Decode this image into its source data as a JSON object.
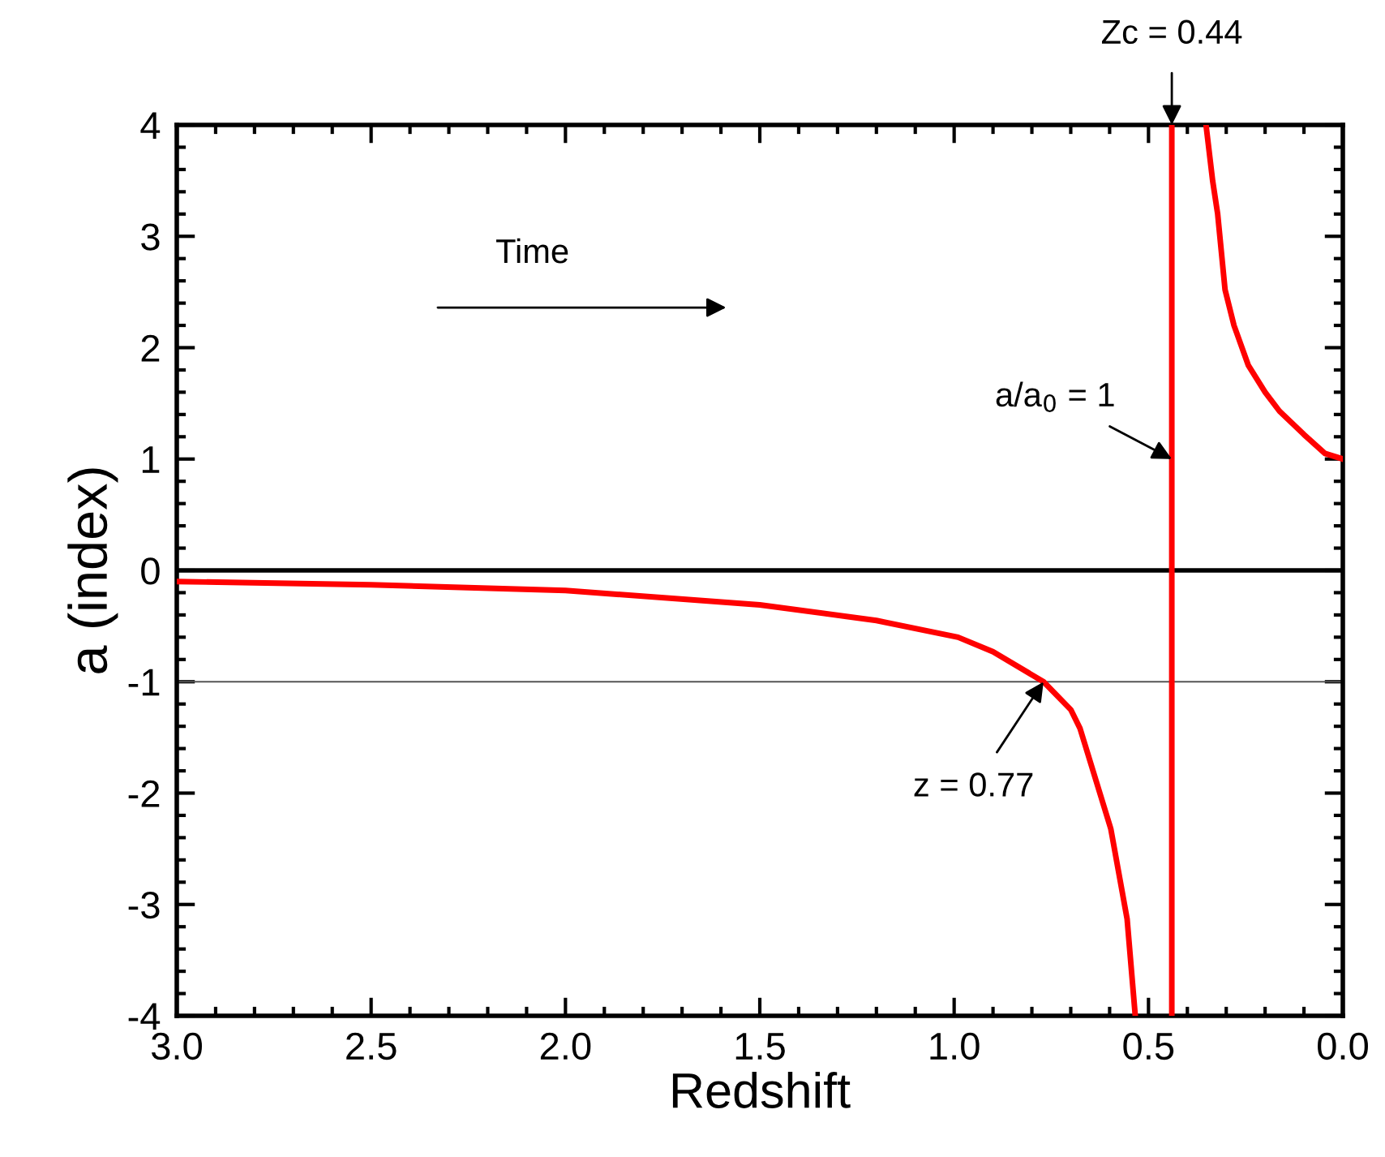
{
  "chart_data": {
    "type": "line",
    "xlabel": "Redshift",
    "ylabel": "a (index)",
    "xlim": [
      3.0,
      0.0
    ],
    "xticks": [
      {
        "value": 3.0,
        "label": "3.0"
      },
      {
        "value": 2.5,
        "label": "2.5"
      },
      {
        "value": 2.0,
        "label": "2.0"
      },
      {
        "value": 1.5,
        "label": "1.5"
      },
      {
        "value": 1.0,
        "label": "1.0"
      },
      {
        "value": 0.5,
        "label": "0.5"
      },
      {
        "value": 0.0,
        "label": "0.0"
      }
    ],
    "ylim": [
      -4,
      4
    ],
    "yticks": [
      -4,
      -3,
      -2,
      -1,
      0,
      1,
      2,
      3,
      4
    ],
    "grid": false,
    "marker": "none",
    "line_style": "solid",
    "series": [
      {
        "color": "#ff0000",
        "x": [
          3.0,
          2.5,
          2.0,
          1.5,
          1.2,
          0.99,
          0.9,
          0.77,
          0.7,
          0.676,
          0.597,
          0.555,
          0.534
        ],
        "values": [
          -0.1,
          -0.13,
          -0.18,
          -0.31,
          -0.45,
          -0.6,
          -0.73,
          -1.0,
          -1.25,
          -1.42,
          -2.32,
          -3.13,
          -4.0
        ]
      },
      {
        "color": "#ff0000",
        "x": [
          0.352,
          0.335,
          0.322,
          0.303,
          0.28,
          0.243,
          0.2,
          0.163,
          0.1,
          0.046,
          0.0
        ],
        "values": [
          4.0,
          3.5,
          3.2,
          2.52,
          2.2,
          1.84,
          1.6,
          1.43,
          1.22,
          1.05,
          1.0
        ]
      }
    ],
    "ref_lines": [
      {
        "axis": "y",
        "value": 0,
        "color": "#000000"
      },
      {
        "axis": "y",
        "value": -1,
        "color": "#555555"
      },
      {
        "axis": "x",
        "value": 0.44,
        "label": "Zc = 0.44",
        "color": "#ff0000"
      }
    ],
    "annotations": [
      "Time",
      {
        "text": "a/a$_{0}$ = 1",
        "x": 0.44,
        "y": 1
      },
      {
        "text": "z = 0.77",
        "x": 0.77,
        "y": -1
      }
    ]
  }
}
